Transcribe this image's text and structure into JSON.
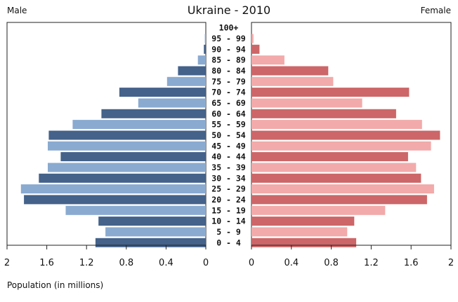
{
  "chart_data": {
    "type": "bar",
    "title": "Ukraine - 2010",
    "left_label": "Male",
    "right_label": "Female",
    "footnote": "Population (in millions)",
    "categories": [
      "100+",
      "95 - 99",
      "90 - 94",
      "85 - 89",
      "80 - 84",
      "75 - 79",
      "70 - 74",
      "65 - 69",
      "60 - 64",
      "55 - 59",
      "50 - 54",
      "45 - 49",
      "40 - 44",
      "35 - 39",
      "30 - 34",
      "25 - 29",
      "20 - 24",
      "15 - 19",
      "10 - 14",
      "5 - 9",
      "0 - 4"
    ],
    "series": [
      {
        "name": "Male",
        "values": [
          0.0,
          0.01,
          0.02,
          0.08,
          0.28,
          0.39,
          0.87,
          0.68,
          1.05,
          1.34,
          1.58,
          1.59,
          1.46,
          1.59,
          1.68,
          1.86,
          1.83,
          1.41,
          1.08,
          1.01,
          1.11
        ]
      },
      {
        "name": "Female",
        "values": [
          0.0,
          0.02,
          0.08,
          0.33,
          0.77,
          0.82,
          1.58,
          1.11,
          1.45,
          1.71,
          1.89,
          1.8,
          1.57,
          1.65,
          1.7,
          1.83,
          1.76,
          1.34,
          1.03,
          0.96,
          1.05
        ]
      }
    ],
    "xlim": [
      0,
      2
    ],
    "x_ticks_left": [
      "2",
      "1.6",
      "1.2",
      "0.8",
      "0.4",
      "0"
    ],
    "x_ticks_right": [
      "0",
      "0.4",
      "0.8",
      "1.2",
      "1.6",
      "2"
    ],
    "colors": {
      "male_dark": "#44628a",
      "male_light": "#8aaad0",
      "female_dark": "#cc6668",
      "female_light": "#f2aaaa"
    }
  }
}
